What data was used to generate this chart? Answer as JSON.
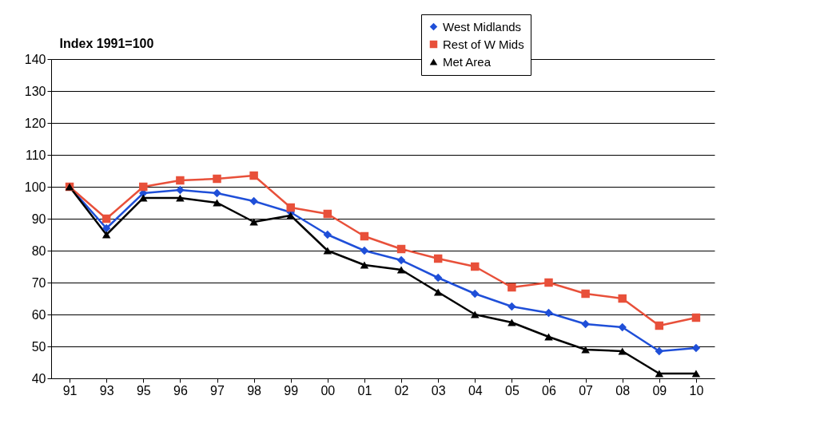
{
  "chart_data": {
    "type": "line",
    "ylabel": "Index 1991=100",
    "categories": [
      "91",
      "93",
      "95",
      "96",
      "97",
      "98",
      "99",
      "00",
      "01",
      "02",
      "03",
      "04",
      "05",
      "06",
      "07",
      "08",
      "09",
      "10"
    ],
    "series": [
      {
        "name": "West Midlands",
        "color": "#1f4fd8",
        "marker": "diamond",
        "values": [
          100,
          87,
          98,
          99,
          98,
          95.5,
          92,
          85,
          80,
          77,
          71.5,
          66.5,
          62.5,
          60.5,
          57,
          56,
          48.5,
          49.5
        ]
      },
      {
        "name": "Rest of W Mids",
        "color": "#e8503a",
        "marker": "square",
        "values": [
          100,
          90,
          100,
          102,
          102.5,
          103.5,
          93.5,
          91.5,
          84.5,
          80.5,
          77.5,
          75,
          68.5,
          70,
          66.5,
          65,
          56.5,
          59
        ]
      },
      {
        "name": "Met Area",
        "color": "#000000",
        "marker": "triangle",
        "values": [
          100,
          85,
          96.5,
          96.5,
          95,
          89,
          91,
          80,
          75.5,
          74,
          67,
          60,
          57.5,
          53,
          49,
          48.5,
          41.5,
          41.5
        ]
      }
    ],
    "ylim": [
      40,
      140
    ],
    "yticks": [
      40,
      50,
      60,
      70,
      80,
      90,
      100,
      110,
      120,
      130,
      140
    ],
    "grid": "y",
    "legend": "top right",
    "line_style": "solid"
  }
}
